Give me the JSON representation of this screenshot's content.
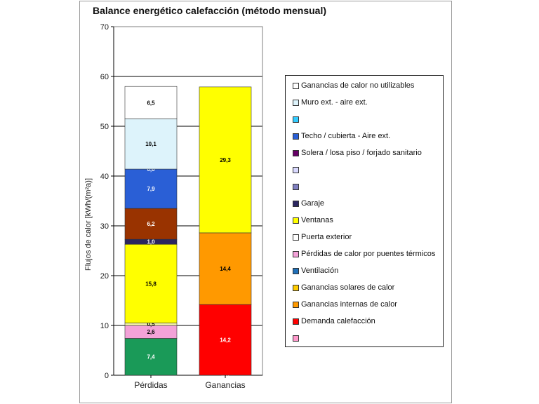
{
  "chart_data": {
    "type": "bar",
    "stacked": true,
    "title": "Balance energético calefacción (método mensual)",
    "ylabel": "Flujos de calor [kWh/(m²a)]",
    "ylim": [
      0,
      70
    ],
    "yticks": [
      0,
      10,
      20,
      30,
      40,
      50,
      60,
      70
    ],
    "grid": true,
    "legend_position": "right",
    "categories": [
      "Pérdidas",
      "Ganancias"
    ],
    "stacks": [
      {
        "category": "Pérdidas",
        "segments": [
          {
            "value": 7.4,
            "label": "7,4",
            "color": "#1a9a58"
          },
          {
            "value": 2.6,
            "label": "2,6",
            "color": "#f3a2d8"
          },
          {
            "value": 0.5,
            "label": "0,5",
            "color": "#f7f7a8"
          },
          {
            "value": 15.8,
            "label": "15,8",
            "color": "#ffff00"
          },
          {
            "value": 1.0,
            "label": "1,0",
            "color": "#2b2660"
          },
          {
            "value": 6.2,
            "label": "6,2",
            "color": "#993300"
          },
          {
            "value": 7.9,
            "label": "7,9",
            "color": "#2a5fd6"
          },
          {
            "value": 0.0,
            "label": "0,0",
            "color": "#1f4fb8"
          },
          {
            "value": 10.1,
            "label": "10,1",
            "color": "#ddf3fb"
          },
          {
            "value": 6.5,
            "label": "6,5",
            "color": "#ffffff"
          }
        ]
      },
      {
        "category": "Ganancias",
        "segments": [
          {
            "value": 0.0,
            "label": "0,0",
            "color": "#ff0000"
          },
          {
            "value": 14.2,
            "label": "14,2",
            "color": "#ff0000"
          },
          {
            "value": 14.4,
            "label": "14,4",
            "color": "#ff9900"
          },
          {
            "value": 29.3,
            "label": "29,3",
            "color": "#ffff00"
          }
        ]
      }
    ],
    "legend": [
      {
        "label": "Ganancias de calor no utilizables",
        "color": "#ffffff"
      },
      {
        "label": "Muro ext. - aire ext.",
        "color": "#ddf3fb"
      },
      {
        "label": "",
        "color": "#33ccff"
      },
      {
        "label": "Techo / cubierta - Aire ext.",
        "color": "#2a5fd6"
      },
      {
        "label": "Solera / losa piso / forjado sanitario",
        "color": "#660066"
      },
      {
        "label": "",
        "color": "#d9d9ff"
      },
      {
        "label": "",
        "color": "#7f7fc0"
      },
      {
        "label": "Garaje",
        "color": "#2b2660"
      },
      {
        "label": "Ventanas",
        "color": "#ffff00"
      },
      {
        "label": "Puerta exterior",
        "color": "#ffffff"
      },
      {
        "label": "Pérdidas de calor por puentes térmicos",
        "color": "#f3a2d8"
      },
      {
        "label": "Ventilación",
        "color": "#1f6fb8"
      },
      {
        "label": "Ganancias solares de calor",
        "color": "#ffcc00"
      },
      {
        "label": "Ganancias internas de calor",
        "color": "#ff9900"
      },
      {
        "label": "Demanda calefacción",
        "color": "#ff0000"
      },
      {
        "label": "",
        "color": "#ff99cc"
      }
    ]
  }
}
